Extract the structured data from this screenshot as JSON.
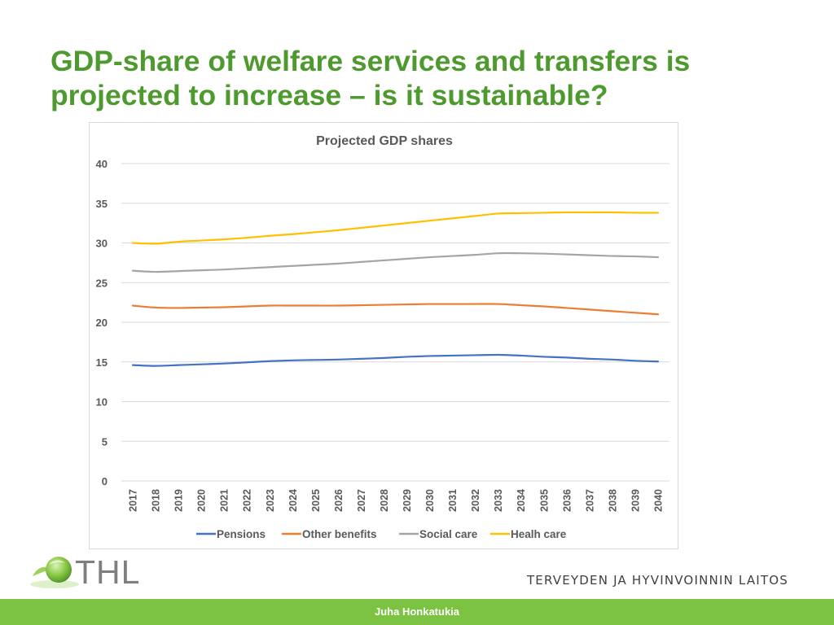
{
  "slide": {
    "title": "GDP-share of welfare services and transfers is projected to increase – is it sustainable?",
    "logo_text": "THL",
    "institute_name": "TERVEYDEN JA HYVINVOINNIN LAITOS",
    "author": "Juha Honkatukia"
  },
  "chart_data": {
    "type": "line",
    "title": "Projected GDP shares",
    "xlabel": "",
    "ylabel": "",
    "ylim": [
      0,
      40
    ],
    "yticks": [
      0,
      5,
      10,
      15,
      20,
      25,
      30,
      35,
      40
    ],
    "grid": true,
    "legend_position": "bottom",
    "categories": [
      "2017",
      "2018",
      "2019",
      "2020",
      "2021",
      "2022",
      "2023",
      "2024",
      "2025",
      "2026",
      "2027",
      "2028",
      "2029",
      "2030",
      "2031",
      "2032",
      "2033",
      "2034",
      "2035",
      "2036",
      "2037",
      "2038",
      "2039",
      "2040"
    ],
    "series": [
      {
        "name": "Pensions",
        "color": "#4472c4",
        "values": [
          14.6,
          14.5,
          14.6,
          14.7,
          14.8,
          14.95,
          15.1,
          15.2,
          15.25,
          15.3,
          15.4,
          15.5,
          15.65,
          15.75,
          15.8,
          15.85,
          15.9,
          15.8,
          15.65,
          15.55,
          15.4,
          15.3,
          15.15,
          15.05
        ]
      },
      {
        "name": "Other benefits",
        "color": "#ed7d31",
        "values": [
          22.1,
          21.85,
          21.8,
          21.85,
          21.9,
          22.0,
          22.1,
          22.1,
          22.1,
          22.1,
          22.15,
          22.2,
          22.25,
          22.3,
          22.3,
          22.3,
          22.3,
          22.15,
          22.0,
          21.8,
          21.6,
          21.4,
          21.2,
          21.0
        ]
      },
      {
        "name": "Social care",
        "color": "#a5a5a5",
        "values": [
          26.5,
          26.35,
          26.45,
          26.55,
          26.65,
          26.8,
          26.95,
          27.1,
          27.25,
          27.4,
          27.6,
          27.8,
          28.0,
          28.2,
          28.35,
          28.5,
          28.7,
          28.7,
          28.65,
          28.55,
          28.45,
          28.35,
          28.3,
          28.2
        ]
      },
      {
        "name": "Healh care",
        "color": "#ffc000",
        "values": [
          30.0,
          29.9,
          30.15,
          30.3,
          30.45,
          30.65,
          30.9,
          31.1,
          31.35,
          31.6,
          31.9,
          32.2,
          32.5,
          32.8,
          33.1,
          33.4,
          33.7,
          33.75,
          33.8,
          33.85,
          33.85,
          33.85,
          33.8,
          33.8
        ]
      }
    ]
  }
}
